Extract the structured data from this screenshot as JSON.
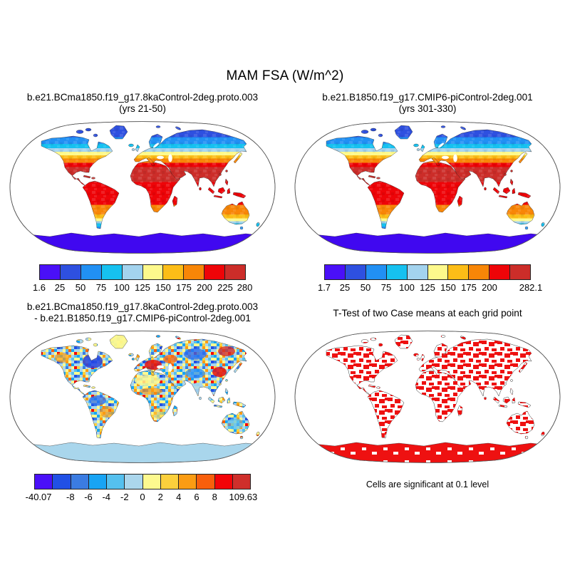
{
  "figure_title": "MAM FSA (W/m^2)",
  "panels": {
    "top_left": {
      "title_line1": "b.e21.BCma1850.f19_g17.8kaControl-2deg.proto.003",
      "title_line2": "(yrs 21-50)",
      "colorbar": {
        "colors": [
          "#4a10f8",
          "#2e50e0",
          "#2190f4",
          "#16c1f0",
          "#a3d3ee",
          "#fdf98c",
          "#fcbd17",
          "#f88607",
          "#ee0408",
          "#cc2d29"
        ],
        "labels": [
          {
            "t": "1.6",
            "p": 0
          },
          {
            "t": "25",
            "p": 10
          },
          {
            "t": "50",
            "p": 20
          },
          {
            "t": "75",
            "p": 30
          },
          {
            "t": "100",
            "p": 40
          },
          {
            "t": "125",
            "p": 50
          },
          {
            "t": "150",
            "p": 60
          },
          {
            "t": "175",
            "p": 70
          },
          {
            "t": "200",
            "p": 80
          },
          {
            "t": "225",
            "p": 90
          },
          {
            "t": "280",
            "p": 99.5
          }
        ]
      }
    },
    "top_right": {
      "title_line1": "b.e21.B1850.f19_g17.CMIP6-piControl-2deg.001",
      "title_line2": "(yrs 301-330)",
      "colorbar": {
        "colors": [
          "#4a10f8",
          "#2e50e0",
          "#2190f4",
          "#16c1f0",
          "#a3d3ee",
          "#fdf98c",
          "#fcbd17",
          "#f88607",
          "#ee0408",
          "#cc2d29"
        ],
        "labels": [
          {
            "t": "1.7",
            "p": 0
          },
          {
            "t": "25",
            "p": 10
          },
          {
            "t": "50",
            "p": 20
          },
          {
            "t": "75",
            "p": 30
          },
          {
            "t": "100",
            "p": 40
          },
          {
            "t": "125",
            "p": 50
          },
          {
            "t": "150",
            "p": 60
          },
          {
            "t": "175",
            "p": 70
          },
          {
            "t": "200",
            "p": 80
          },
          {
            "t": "282.1",
            "p": 100
          }
        ]
      }
    },
    "bottom_left": {
      "title_line1": "b.e21.BCma1850.f19_g17.8kaControl-2deg.proto.003",
      "title_line2": "- b.e21.B1850.f19_g17.CMIP6-piControl-2deg.001",
      "colorbar": {
        "colors": [
          "#4a10f8",
          "#2150e5",
          "#3b7ce2",
          "#18a4f4",
          "#55c0ee",
          "#abd6ec",
          "#fdf98f",
          "#fcd03c",
          "#fb9c13",
          "#f85f0c",
          "#f30408",
          "#cf2f2b"
        ],
        "labels": [
          {
            "t": "-40.07",
            "p": 2
          },
          {
            "t": "-8",
            "p": 16.7
          },
          {
            "t": "-6",
            "p": 25
          },
          {
            "t": "-4",
            "p": 33.3
          },
          {
            "t": "-2",
            "p": 41.7
          },
          {
            "t": "0",
            "p": 50
          },
          {
            "t": "2",
            "p": 58.3
          },
          {
            "t": "4",
            "p": 66.7
          },
          {
            "t": "6",
            "p": 75
          },
          {
            "t": "8",
            "p": 83.3
          },
          {
            "t": "109.63",
            "p": 96.5
          }
        ]
      }
    },
    "bottom_right": {
      "title": "T-Test of two Case means at each grid point",
      "caption": "Cells are significant at 0.1 level",
      "significant_color": "#ee1111"
    }
  },
  "chart_data": [
    {
      "type": "heatmap",
      "subtype": "global-map-robinson",
      "variable": "MAM FSA",
      "units": "W/m^2",
      "title": "b.e21.BCma1850.f19_g17.8kaControl-2deg.proto.003 (yrs 21-50)",
      "min": 1.6,
      "max": 280,
      "levels": [
        25,
        50,
        75,
        100,
        125,
        150,
        175,
        200,
        225
      ],
      "palette": [
        "#4a10f8",
        "#2e50e0",
        "#2190f4",
        "#16c1f0",
        "#a3d3ee",
        "#fdf98c",
        "#fcbd17",
        "#f88607",
        "#ee0408",
        "#cc2d29"
      ],
      "ocean": "masked-white"
    },
    {
      "type": "heatmap",
      "subtype": "global-map-robinson",
      "variable": "MAM FSA",
      "units": "W/m^2",
      "title": "b.e21.B1850.f19_g17.CMIP6-piControl-2deg.001 (yrs 301-330)",
      "min": 1.7,
      "max": 282.1,
      "levels": [
        25,
        50,
        75,
        100,
        125,
        150,
        175,
        200,
        225
      ],
      "palette": [
        "#4a10f8",
        "#2e50e0",
        "#2190f4",
        "#16c1f0",
        "#a3d3ee",
        "#fdf98c",
        "#fcbd17",
        "#f88607",
        "#ee0408",
        "#cc2d29"
      ],
      "ocean": "masked-white"
    },
    {
      "type": "heatmap",
      "subtype": "global-map-robinson-difference",
      "variable": "MAM FSA difference",
      "units": "W/m^2",
      "title": "b.e21.BCma1850.f19_g17.8kaControl-2deg.proto.003 - b.e21.B1850.f19_g17.CMIP6-piControl-2deg.001",
      "min": -40.07,
      "max": 109.63,
      "levels": [
        -8,
        -6,
        -4,
        -2,
        0,
        2,
        4,
        6,
        8
      ],
      "palette": [
        "#4a10f8",
        "#2150e5",
        "#3b7ce2",
        "#18a4f4",
        "#55c0ee",
        "#abd6ec",
        "#fdf98f",
        "#fcd03c",
        "#fb9c13",
        "#f85f0c",
        "#f30408",
        "#cf2f2b"
      ],
      "ocean": "masked-white"
    },
    {
      "type": "significance-map",
      "subtype": "global-map-robinson",
      "title": "T-Test of two Case means at each grid point",
      "note": "Cells are significant at 0.1 level",
      "significant_color": "#ee1111"
    }
  ]
}
